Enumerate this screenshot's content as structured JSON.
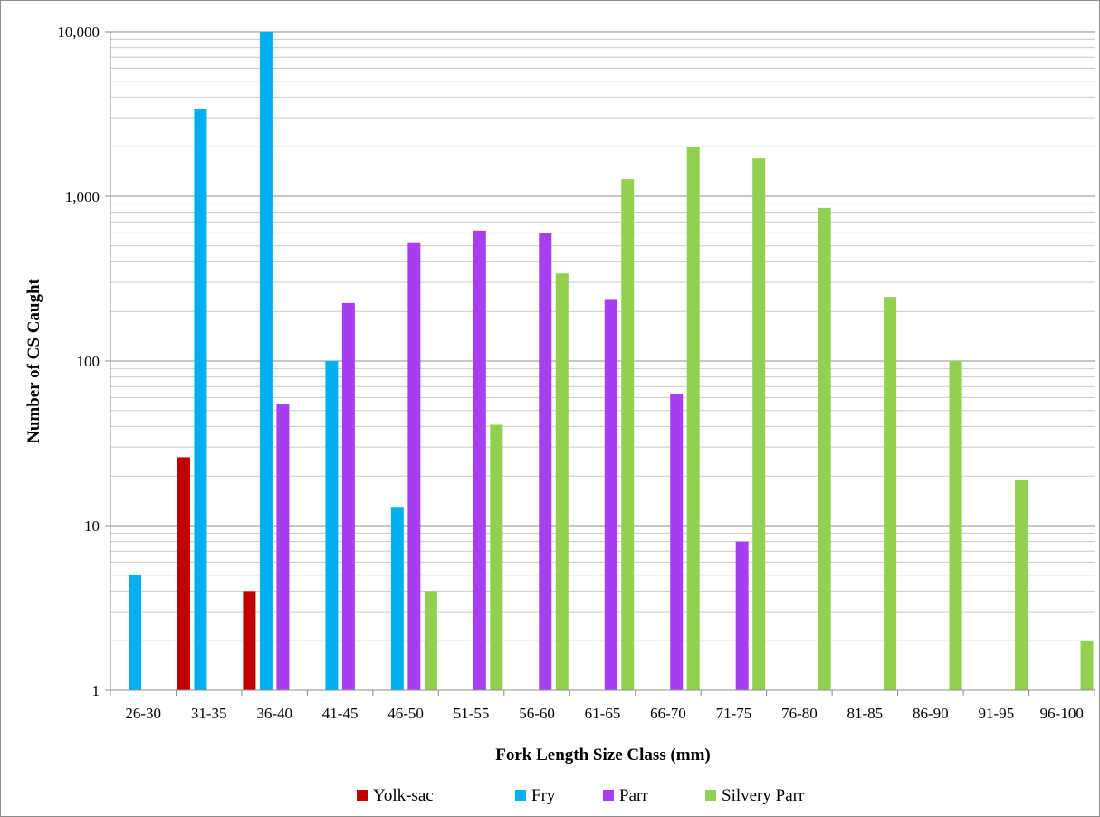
{
  "chart_data": {
    "type": "bar",
    "title": "",
    "xlabel": "Fork Length Size Class (mm)",
    "ylabel": "Number  of CS Caught",
    "yscale": "log",
    "ylim": [
      1,
      10000
    ],
    "y_tick_labels": [
      "1",
      "10",
      "100",
      "1,000",
      "10,000"
    ],
    "y_tick_values": [
      1,
      10,
      100,
      1000,
      10000
    ],
    "grid": "horizontal major and minor",
    "legend_position": "bottom",
    "categories": [
      "26-30",
      "31-35",
      "36-40",
      "41-45",
      "46-50",
      "51-55",
      "56-60",
      "61-65",
      "66-70",
      "71-75",
      "76-80",
      "81-85",
      "86-90",
      "91-95",
      "96-100"
    ],
    "series": [
      {
        "name": "Yolk-sac",
        "color": "#c00000",
        "values": [
          null,
          26,
          4,
          null,
          null,
          null,
          null,
          null,
          null,
          null,
          null,
          null,
          null,
          null,
          null
        ]
      },
      {
        "name": "Fry",
        "color": "#00b0f0",
        "values": [
          5,
          3400,
          10000,
          100,
          13,
          null,
          null,
          null,
          null,
          null,
          null,
          null,
          null,
          null,
          null
        ]
      },
      {
        "name": "Parr",
        "color": "#a73ff0",
        "values": [
          null,
          null,
          55,
          225,
          520,
          620,
          600,
          235,
          63,
          8,
          null,
          null,
          null,
          null,
          null
        ]
      },
      {
        "name": "Silvery Parr",
        "color": "#92d050",
        "values": [
          null,
          null,
          null,
          null,
          4,
          41,
          340,
          1270,
          2000,
          1700,
          850,
          245,
          100,
          19,
          2
        ]
      }
    ]
  }
}
